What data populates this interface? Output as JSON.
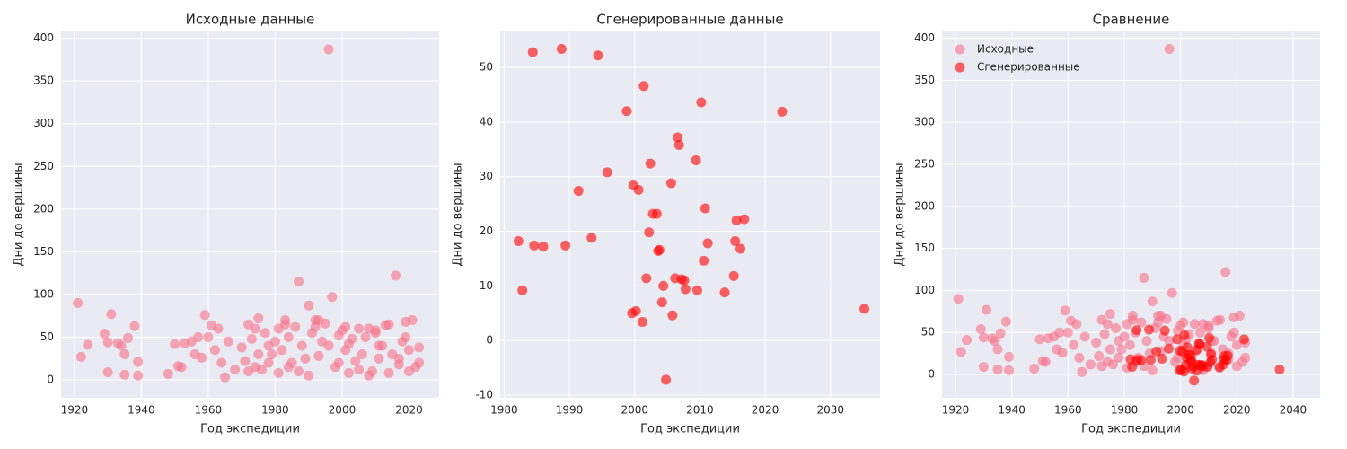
{
  "chart_data": [
    {
      "type": "scatter",
      "title": "Исходные данные",
      "xlabel": "Год экспедиции",
      "ylabel": "Дни до вершины",
      "xlim": [
        1916,
        2029
      ],
      "ylim": [
        -21,
        408
      ],
      "xticks": [
        1920,
        1940,
        1960,
        1980,
        2000,
        2020
      ],
      "yticks": [
        0,
        50,
        100,
        150,
        200,
        250,
        300,
        350,
        400
      ],
      "grid": true,
      "series": [
        {
          "color": "#f77189",
          "alpha": 0.6,
          "x": [
            1921,
            1922,
            1924,
            1929,
            1930,
            1930,
            1931,
            1933,
            1934,
            1935,
            1935,
            1936,
            1938,
            1939,
            1939,
            1948,
            1950,
            1951,
            1952,
            1953,
            1955,
            1956,
            1957,
            1958,
            1959,
            1960,
            1961,
            1962,
            1963,
            1964,
            1965,
            1966,
            1968,
            1970,
            1971,
            1972,
            1973,
            1974,
            1975,
            1976,
            1977,
            1978,
            1979,
            1980,
            1981,
            1982,
            1983,
            1984,
            1985,
            1986,
            1987,
            1988,
            1989,
            1990,
            1991,
            1992,
            1993,
            1994,
            1995,
            1996,
            1997,
            1998,
            1999,
            2000,
            2001,
            2002,
            2003,
            2004,
            2005,
            2006,
            2007,
            2008,
            2009,
            2010,
            2011,
            2012,
            2013,
            2014,
            2015,
            2016,
            2017,
            2018,
            2019,
            2020,
            2021,
            2022,
            2023,
            1972,
            1975,
            1978,
            1981,
            1984,
            1987,
            1990,
            1993,
            1996,
            1999,
            2002,
            2005,
            2008,
            2011,
            2014,
            2017,
            2020,
            2023,
            1974,
            1983,
            1992,
            2001,
            2010,
            2019
          ],
          "y": [
            90,
            27,
            41,
            54,
            9,
            44,
            77,
            43,
            40,
            30,
            6,
            49,
            63,
            21,
            5,
            7,
            42,
            16,
            15,
            43,
            45,
            30,
            50,
            26,
            76,
            50,
            64,
            35,
            60,
            20,
            3,
            45,
            12,
            38,
            22,
            65,
            48,
            15,
            72,
            12,
            55,
            40,
            30,
            45,
            60,
            35,
            70,
            50,
            20,
            62,
            115,
            40,
            25,
            87,
            55,
            62,
            28,
            45,
            66,
            387,
            97,
            15,
            52,
            58,
            35,
            42,
            48,
            22,
            60,
            30,
            50,
            60,
            10,
            55,
            40,
            40,
            64,
            65,
            30,
            122,
            25,
            45,
            68,
            35,
            70,
            15,
            38,
            10,
            30,
            20,
            8,
            15,
            10,
            5,
            70,
            40,
            20,
            8,
            12,
            5,
            25,
            8,
            18,
            10,
            20,
            60,
            65,
            70,
            62,
            58,
            50
          ]
        }
      ]
    },
    {
      "type": "scatter",
      "title": "Сгенерированные данные",
      "xlabel": "Год экспедиции",
      "ylabel": "Дни до вершины",
      "xlim": [
        1979.4,
        2037.6
      ],
      "ylim": [
        -10.5,
        56.6
      ],
      "xticks": [
        1980,
        1990,
        2000,
        2010,
        2020,
        2030
      ],
      "yticks": [
        -10,
        0,
        10,
        20,
        30,
        40,
        50
      ],
      "grid": true,
      "series": [
        {
          "color": "#ff0000",
          "alpha": 0.6,
          "x": [
            1982.2,
            1982.8,
            1984.4,
            1984.6,
            1986.0,
            1988.8,
            1989.4,
            1991.4,
            1993.4,
            1994.4,
            1995.8,
            1998.8,
            1999.6,
            1999.8,
            2000.2,
            2000.6,
            2001.2,
            2001.4,
            2001.8,
            2002.2,
            2002.4,
            2002.8,
            2003.4,
            2003.6,
            2003.8,
            2004.2,
            2004.4,
            2004.8,
            2005.6,
            2005.8,
            2006.2,
            2006.6,
            2006.8,
            2007.2,
            2007.6,
            2007.8,
            2009.4,
            2009.6,
            2010.2,
            2010.6,
            2010.8,
            2011.2,
            2013.8,
            2015.2,
            2015.4,
            2015.6,
            2016.2,
            2016.8,
            2022.6,
            2035.2
          ],
          "y": [
            18.2,
            9.2,
            52.8,
            17.4,
            17.2,
            53.4,
            17.4,
            27.4,
            18.8,
            52.2,
            30.8,
            42.0,
            5.0,
            28.4,
            5.4,
            27.6,
            3.4,
            46.6,
            11.4,
            19.8,
            32.4,
            23.2,
            23.2,
            16.4,
            16.6,
            7.0,
            10.0,
            -7.2,
            28.8,
            4.6,
            11.4,
            37.2,
            35.8,
            11.2,
            11.0,
            9.4,
            33.0,
            9.2,
            43.6,
            14.6,
            24.2,
            17.8,
            8.8,
            11.8,
            18.2,
            22.0,
            16.8,
            22.2,
            41.9,
            5.8
          ]
        }
      ]
    },
    {
      "type": "scatter",
      "title": "Сравнение",
      "xlabel": "Год экспедиции",
      "ylabel": "Дни до вершины",
      "xlim": [
        1915.2,
        2049.6
      ],
      "ylim": [
        -27.7,
        408
      ],
      "xticks": [
        1920,
        1940,
        1960,
        1980,
        2000,
        2020,
        2040
      ],
      "yticks": [
        0,
        50,
        100,
        150,
        200,
        250,
        300,
        350,
        400
      ],
      "grid": true,
      "legend": "upper-left",
      "series": [
        {
          "name": "Исходные",
          "color": "#f77189",
          "alpha": 0.6,
          "x": [
            1921,
            1922,
            1924,
            1929,
            1930,
            1930,
            1931,
            1933,
            1934,
            1935,
            1935,
            1936,
            1938,
            1939,
            1939,
            1948,
            1950,
            1951,
            1952,
            1953,
            1955,
            1956,
            1957,
            1958,
            1959,
            1960,
            1961,
            1962,
            1963,
            1964,
            1965,
            1966,
            1968,
            1970,
            1971,
            1972,
            1973,
            1974,
            1975,
            1976,
            1977,
            1978,
            1979,
            1980,
            1981,
            1982,
            1983,
            1984,
            1985,
            1986,
            1987,
            1988,
            1989,
            1990,
            1991,
            1992,
            1993,
            1994,
            1995,
            1996,
            1997,
            1998,
            1999,
            2000,
            2001,
            2002,
            2003,
            2004,
            2005,
            2006,
            2007,
            2008,
            2009,
            2010,
            2011,
            2012,
            2013,
            2014,
            2015,
            2016,
            2017,
            2018,
            2019,
            2020,
            2021,
            2022,
            2023,
            1972,
            1975,
            1978,
            1981,
            1984,
            1987,
            1990,
            1993,
            1996,
            1999,
            2002,
            2005,
            2008,
            2011,
            2014,
            2017,
            2020,
            2023,
            1974,
            1983,
            1992,
            2001,
            2010,
            2019
          ],
          "y": [
            90,
            27,
            41,
            54,
            9,
            44,
            77,
            43,
            40,
            30,
            6,
            49,
            63,
            21,
            5,
            7,
            42,
            16,
            15,
            43,
            45,
            30,
            50,
            26,
            76,
            50,
            64,
            35,
            60,
            20,
            3,
            45,
            12,
            38,
            22,
            65,
            48,
            15,
            72,
            12,
            55,
            40,
            30,
            45,
            60,
            35,
            70,
            50,
            20,
            62,
            115,
            40,
            25,
            87,
            55,
            62,
            28,
            45,
            66,
            387,
            97,
            15,
            52,
            58,
            35,
            42,
            48,
            22,
            60,
            30,
            50,
            60,
            10,
            55,
            40,
            40,
            64,
            65,
            30,
            122,
            25,
            45,
            68,
            35,
            70,
            15,
            38,
            10,
            30,
            20,
            8,
            15,
            10,
            5,
            70,
            40,
            20,
            8,
            12,
            5,
            25,
            8,
            18,
            10,
            20,
            60,
            65,
            70,
            62,
            58,
            50
          ]
        },
        {
          "name": "Сгенерированные",
          "color": "#ff0000",
          "alpha": 0.6,
          "x": [
            1982.2,
            1982.8,
            1984.4,
            1984.6,
            1986.0,
            1988.8,
            1989.4,
            1991.4,
            1993.4,
            1994.4,
            1995.8,
            1998.8,
            1999.6,
            1999.8,
            2000.2,
            2000.6,
            2001.2,
            2001.4,
            2001.8,
            2002.2,
            2002.4,
            2002.8,
            2003.4,
            2003.6,
            2003.8,
            2004.2,
            2004.4,
            2004.8,
            2005.6,
            2005.8,
            2006.2,
            2006.6,
            2006.8,
            2007.2,
            2007.6,
            2007.8,
            2009.4,
            2009.6,
            2010.2,
            2010.6,
            2010.8,
            2011.2,
            2013.8,
            2015.2,
            2015.4,
            2015.6,
            2016.2,
            2016.8,
            2022.6,
            2035.2
          ],
          "y": [
            18.2,
            9.2,
            52.8,
            17.4,
            17.2,
            53.4,
            17.4,
            27.4,
            18.8,
            52.2,
            30.8,
            42.0,
            5.0,
            28.4,
            5.4,
            27.6,
            3.4,
            46.6,
            11.4,
            19.8,
            32.4,
            23.2,
            23.2,
            16.4,
            16.6,
            7.0,
            10.0,
            -7.2,
            28.8,
            4.6,
            11.4,
            37.2,
            35.8,
            11.2,
            11.0,
            9.4,
            33.0,
            9.2,
            43.6,
            14.6,
            24.2,
            17.8,
            8.8,
            11.8,
            18.2,
            22.0,
            16.8,
            22.2,
            41.9,
            5.8
          ]
        }
      ]
    }
  ]
}
